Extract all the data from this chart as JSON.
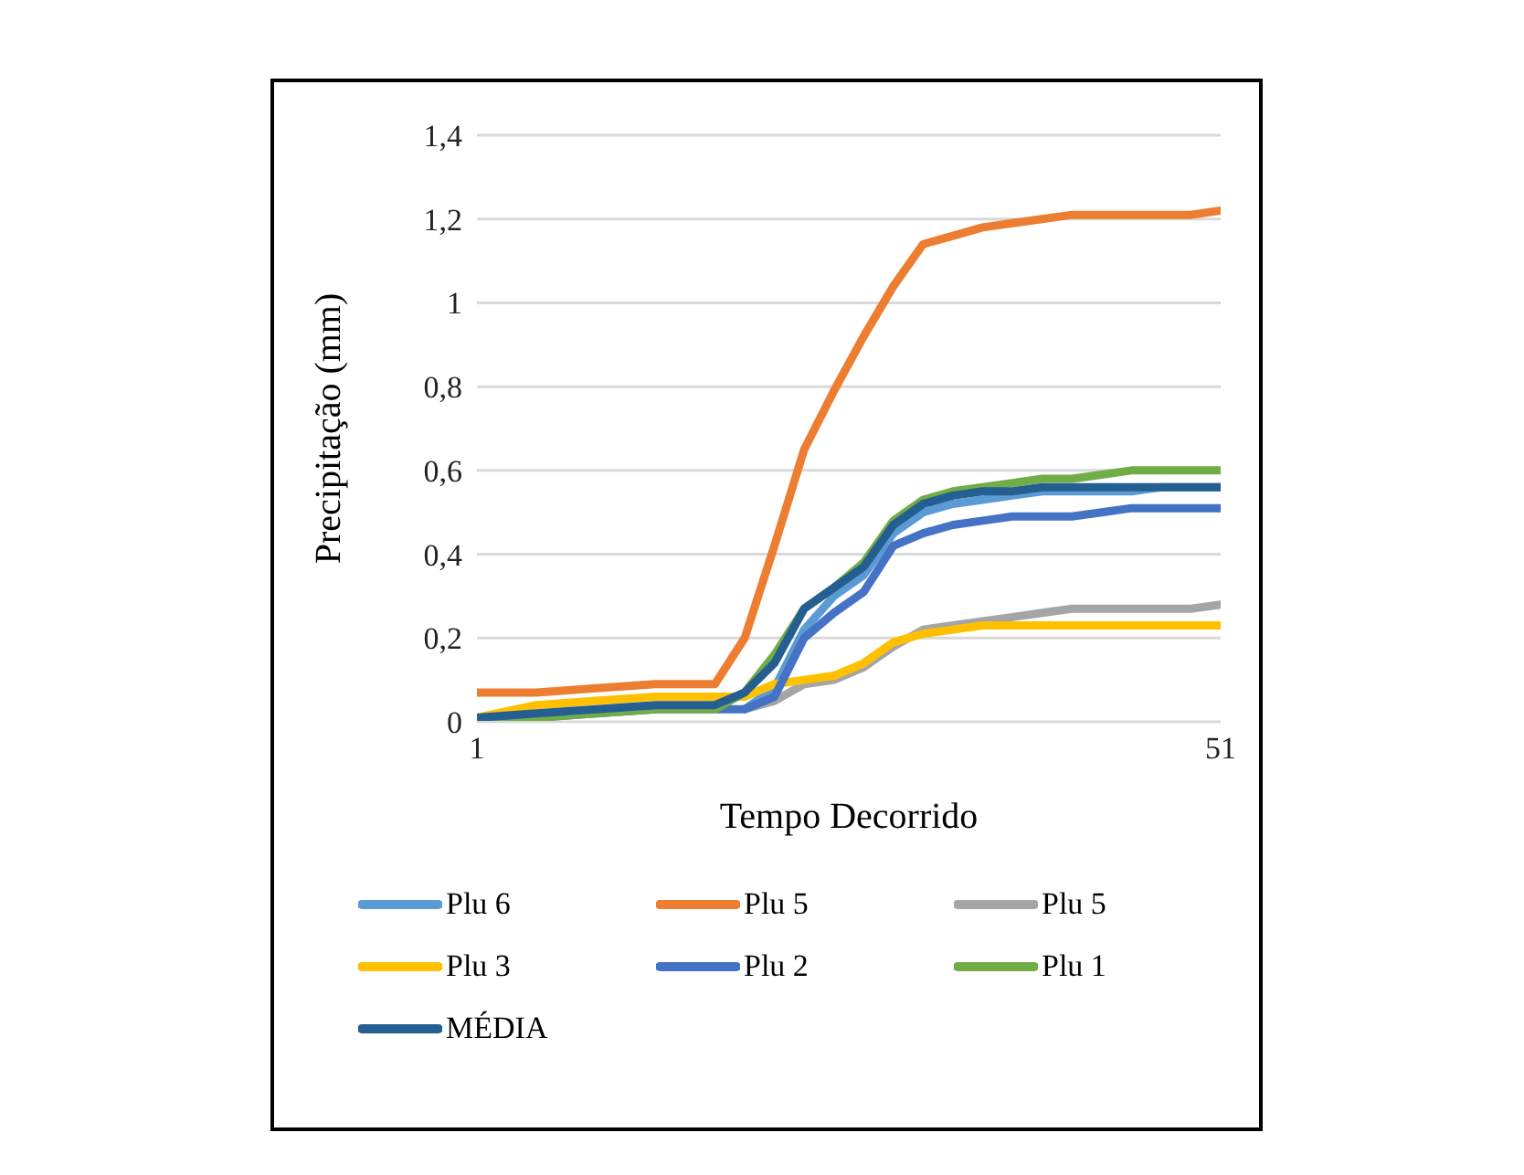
{
  "chart_data": {
    "type": "line",
    "xlabel": "Tempo Decorrido",
    "ylabel": "Precipitação (mm)",
    "x": [
      1,
      5,
      9,
      13,
      17,
      19,
      21,
      23,
      25,
      27,
      29,
      31,
      33,
      35,
      37,
      39,
      41,
      43,
      45,
      47,
      49,
      51
    ],
    "series": [
      {
        "name": "Plu 6",
        "color": "#5b9bd5",
        "values": [
          null,
          null,
          null,
          null,
          null,
          0.03,
          0.08,
          0.22,
          0.3,
          0.35,
          0.45,
          0.5,
          0.52,
          0.53,
          0.54,
          0.55,
          0.55,
          0.55,
          0.55,
          0.56,
          0.56,
          0.56
        ]
      },
      {
        "name": "Plu 5",
        "color": "#ed7d31",
        "values": [
          0.07,
          0.07,
          0.08,
          0.09,
          0.09,
          0.2,
          0.42,
          0.65,
          0.79,
          0.92,
          1.04,
          1.14,
          1.16,
          1.18,
          1.19,
          1.2,
          1.21,
          1.21,
          1.21,
          1.21,
          1.21,
          1.22
        ]
      },
      {
        "name": "Plu 5",
        "color": "#a5a5a5",
        "values": [
          null,
          null,
          null,
          null,
          null,
          0.03,
          0.05,
          0.09,
          0.1,
          0.13,
          0.18,
          0.22,
          0.23,
          0.24,
          0.25,
          0.26,
          0.27,
          0.27,
          0.27,
          0.27,
          0.27,
          0.28
        ]
      },
      {
        "name": "Plu 3",
        "color": "#ffc000",
        "values": [
          0.01,
          0.04,
          0.05,
          0.06,
          0.06,
          0.06,
          0.09,
          0.1,
          0.11,
          0.14,
          0.19,
          0.21,
          0.22,
          0.23,
          0.23,
          0.23,
          0.23,
          0.23,
          0.23,
          0.23,
          0.23,
          0.23
        ]
      },
      {
        "name": "Plu 2",
        "color": "#4472c4",
        "values": [
          0.01,
          0.01,
          0.02,
          0.03,
          0.03,
          0.03,
          0.06,
          0.2,
          0.26,
          0.31,
          0.42,
          0.45,
          0.47,
          0.48,
          0.49,
          0.49,
          0.49,
          0.5,
          0.51,
          0.51,
          0.51,
          0.51
        ]
      },
      {
        "name": "Plu 1",
        "color": "#70ad47",
        "values": [
          0.01,
          0.01,
          0.02,
          0.03,
          0.03,
          0.07,
          0.16,
          0.27,
          0.32,
          0.38,
          0.48,
          0.53,
          0.55,
          0.56,
          0.57,
          0.58,
          0.58,
          0.59,
          0.6,
          0.6,
          0.6,
          0.6
        ]
      },
      {
        "name": "MÉDIA",
        "color": "#255e91",
        "values": [
          0.01,
          0.02,
          0.03,
          0.04,
          0.04,
          0.07,
          0.14,
          0.27,
          0.32,
          0.37,
          0.47,
          0.52,
          0.54,
          0.55,
          0.55,
          0.56,
          0.56,
          0.56,
          0.56,
          0.56,
          0.56,
          0.56
        ]
      }
    ],
    "xlim": [
      1,
      51
    ],
    "xticks": [
      1,
      51
    ],
    "ylim": [
      0,
      1.4
    ],
    "yticks": [
      0,
      {
        "value": 0.2,
        "label": "0,2"
      },
      {
        "value": 0.4,
        "label": "0,4"
      },
      {
        "value": 0.6,
        "label": "0,6"
      },
      {
        "value": 0.8,
        "label": "0,8"
      },
      1,
      {
        "value": 1.2,
        "label": "1,2"
      },
      {
        "value": 1.4,
        "label": "1,4"
      }
    ],
    "grid": "y",
    "legend": "bottom",
    "marker": "none",
    "line_style": "solid"
  }
}
